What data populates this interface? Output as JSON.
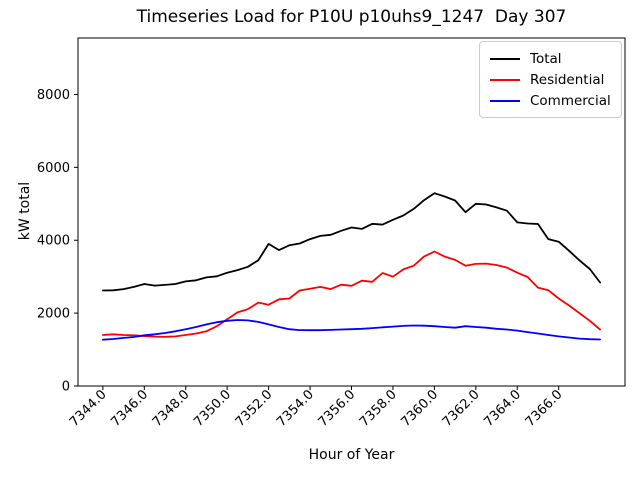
{
  "figure": {
    "title": "Timeseries Load for P10U p10uhs9_1247  Day 307",
    "xlabel": "Hour of Year",
    "ylabel": "kW total"
  },
  "legend": {
    "position": "upper right",
    "items": [
      {
        "label": "Total",
        "color": "#000000"
      },
      {
        "label": "Residential",
        "color": "#ff0000"
      },
      {
        "label": "Commercial",
        "color": "#0000ff"
      }
    ]
  },
  "chart_data": {
    "type": "line",
    "title": "Timeseries Load for P10U p10uhs9_1247  Day 307",
    "xlabel": "Hour of Year",
    "ylabel": "kW total",
    "grid": false,
    "legend_position": "upper right",
    "xlim": [
      7342.8,
      7369.2
    ],
    "ylim": [
      0,
      9550
    ],
    "xticks": [
      7344,
      7346,
      7348,
      7350,
      7352,
      7354,
      7356,
      7358,
      7360,
      7362,
      7364,
      7366
    ],
    "xtick_labels": [
      "7344.0",
      "7346.0",
      "7348.0",
      "7350.0",
      "7352.0",
      "7354.0",
      "7356.0",
      "7358.0",
      "7360.0",
      "7362.0",
      "7364.0",
      "7366.0"
    ],
    "yticks": [
      0,
      2000,
      4000,
      6000,
      8000
    ],
    "ytick_labels": [
      "0",
      "2000",
      "4000",
      "6000",
      "8000"
    ],
    "x": [
      7344.0,
      7344.5,
      7345.0,
      7345.5,
      7346.0,
      7346.5,
      7347.0,
      7347.5,
      7348.0,
      7348.5,
      7349.0,
      7349.5,
      7350.0,
      7350.5,
      7351.0,
      7351.5,
      7352.0,
      7352.5,
      7353.0,
      7353.5,
      7354.0,
      7354.5,
      7355.0,
      7355.5,
      7356.0,
      7356.5,
      7357.0,
      7357.5,
      7358.0,
      7358.5,
      7359.0,
      7359.5,
      7360.0,
      7360.5,
      7361.0,
      7361.5,
      7362.0,
      7362.5,
      7363.0,
      7363.5,
      7364.0,
      7364.5,
      7365.0,
      7365.5,
      7366.0,
      7366.5,
      7367.0,
      7367.5,
      7368.0
    ],
    "series": [
      {
        "name": "Total",
        "color": "#000000",
        "values": [
          2620,
          2625,
          2660,
          2720,
          2800,
          2755,
          2775,
          2800,
          2870,
          2900,
          2980,
          3010,
          3110,
          3180,
          3270,
          3450,
          3900,
          3730,
          3860,
          3910,
          4030,
          4120,
          4150,
          4260,
          4350,
          4310,
          4450,
          4430,
          4560,
          4680,
          4860,
          5100,
          5290,
          5200,
          5090,
          4770,
          5000,
          4980,
          4900,
          4810,
          4490,
          4460,
          4445,
          4030,
          3960,
          3710,
          3450,
          3210,
          2840
        ]
      },
      {
        "name": "Residential",
        "color": "#ff0000",
        "values": [
          1400,
          1420,
          1400,
          1390,
          1370,
          1355,
          1350,
          1360,
          1400,
          1440,
          1500,
          1640,
          1830,
          2020,
          2110,
          2290,
          2230,
          2380,
          2400,
          2620,
          2670,
          2720,
          2660,
          2780,
          2750,
          2890,
          2860,
          3100,
          3000,
          3200,
          3300,
          3550,
          3690,
          3550,
          3460,
          3300,
          3350,
          3360,
          3320,
          3250,
          3110,
          2990,
          2700,
          2630,
          2400,
          2210,
          2000,
          1790,
          1550
        ]
      },
      {
        "name": "Commercial",
        "color": "#0000ff",
        "values": [
          1270,
          1290,
          1320,
          1345,
          1390,
          1420,
          1455,
          1500,
          1560,
          1620,
          1690,
          1750,
          1790,
          1810,
          1800,
          1760,
          1690,
          1620,
          1560,
          1535,
          1530,
          1530,
          1540,
          1550,
          1560,
          1570,
          1590,
          1610,
          1630,
          1650,
          1660,
          1655,
          1640,
          1620,
          1600,
          1640,
          1620,
          1600,
          1570,
          1550,
          1520,
          1480,
          1440,
          1400,
          1360,
          1330,
          1300,
          1285,
          1275
        ]
      }
    ]
  }
}
